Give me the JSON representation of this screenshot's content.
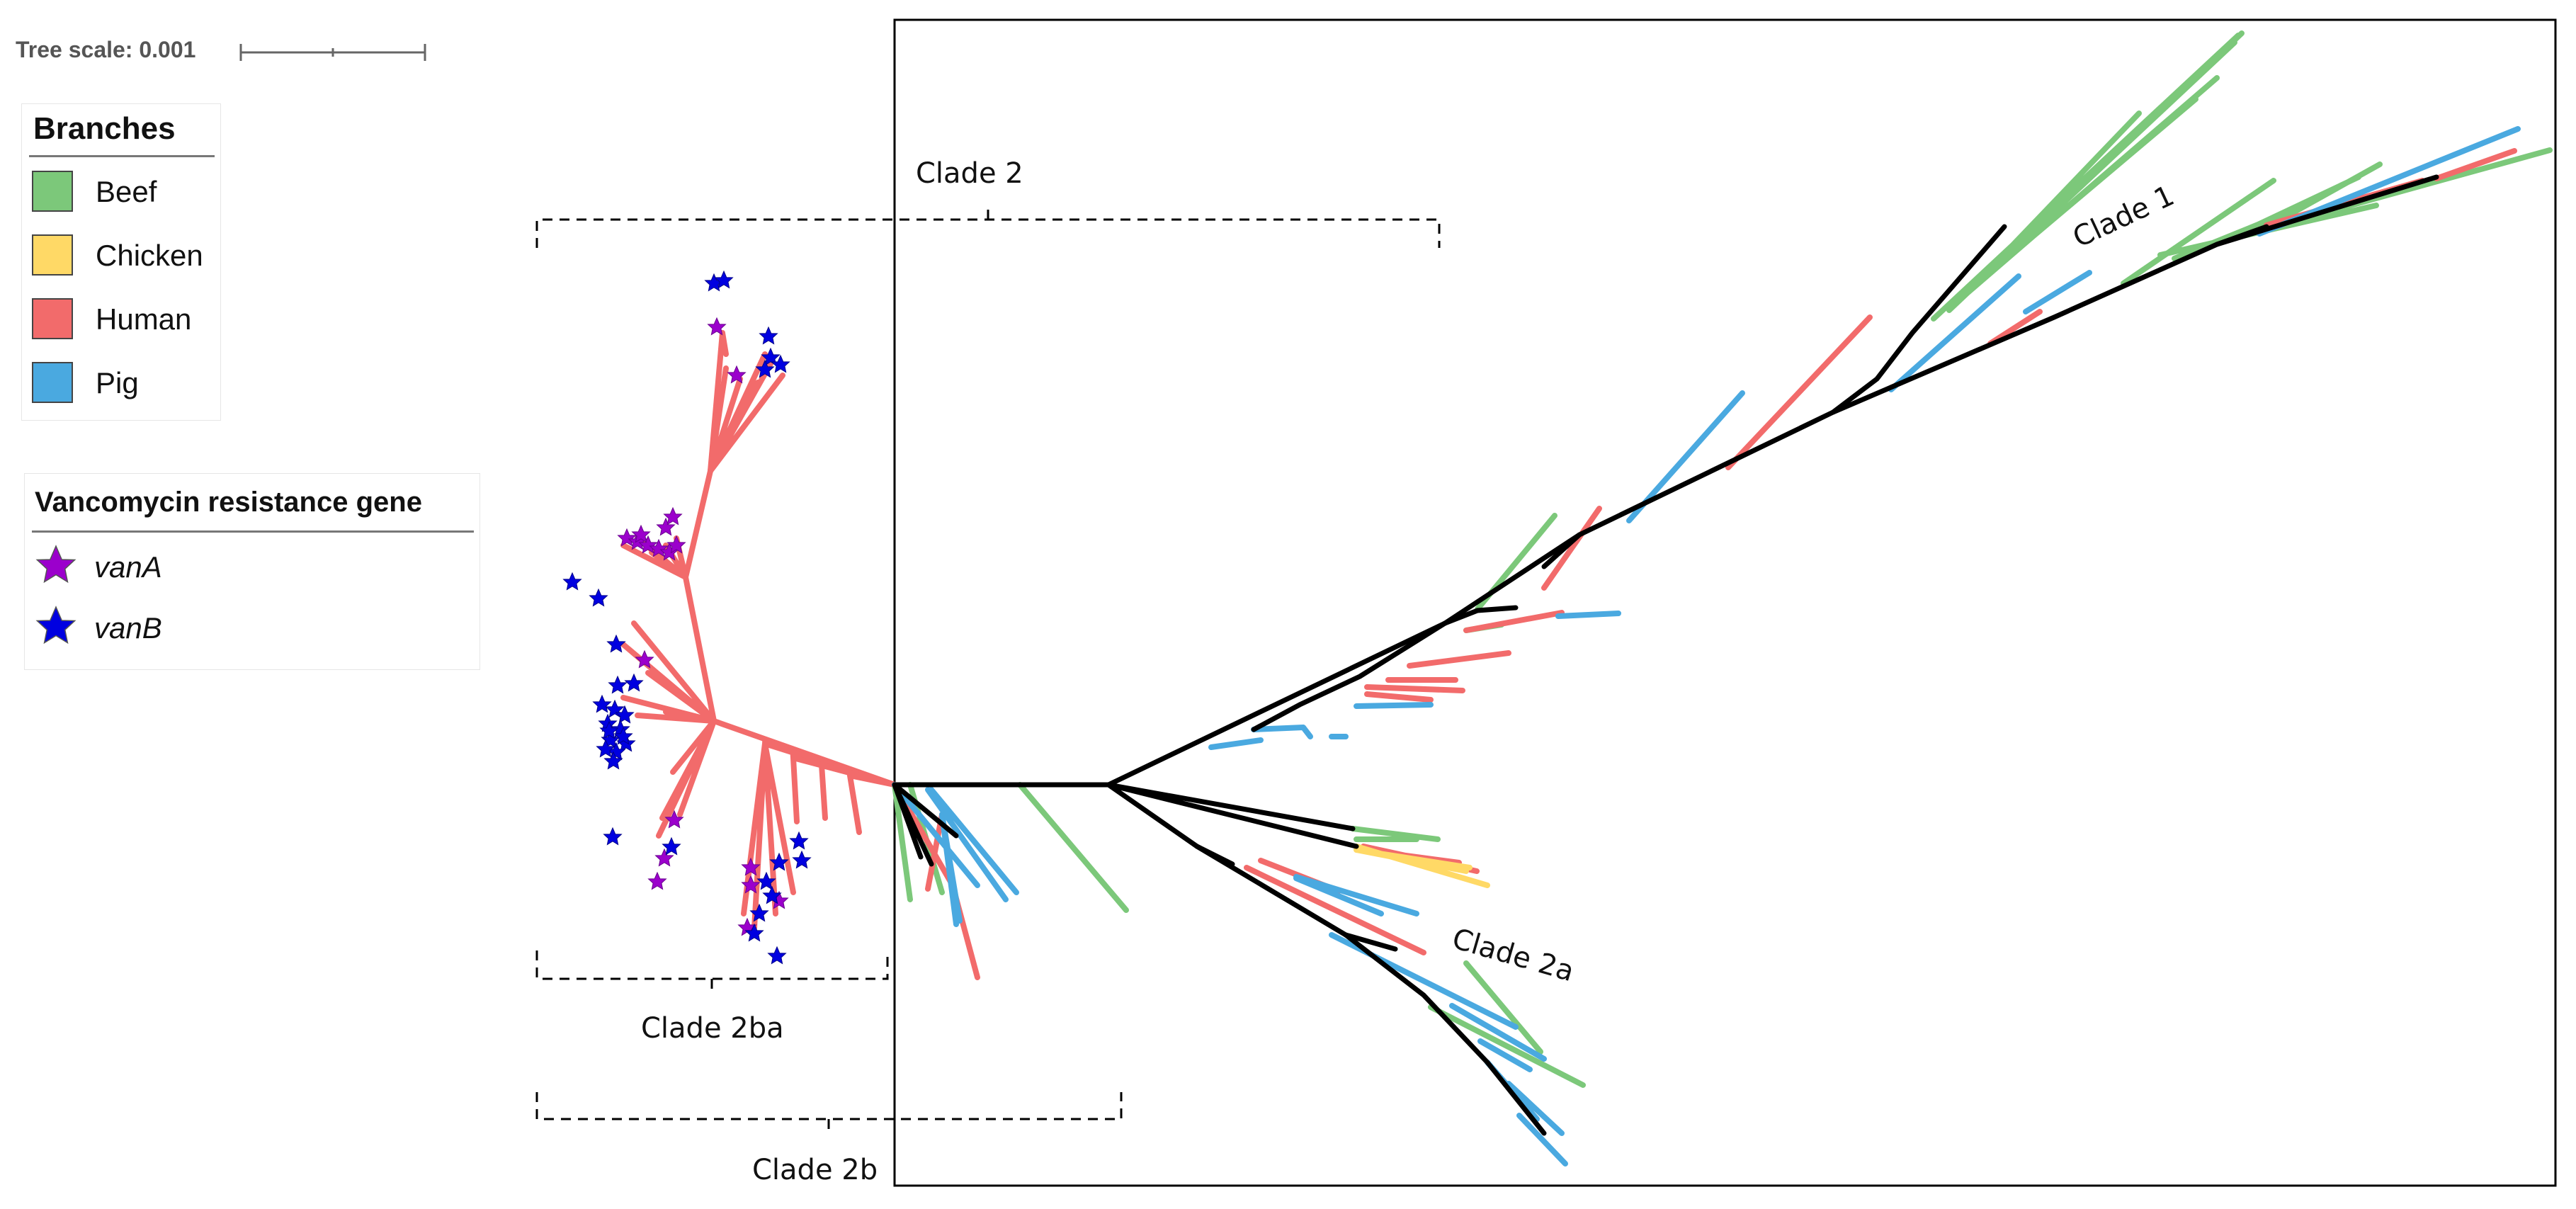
{
  "tree_scale": {
    "label": "Tree scale: 0.001"
  },
  "legend_branches": {
    "title": "Branches",
    "items": [
      {
        "label": "Beef",
        "color": "#7cc87a"
      },
      {
        "label": "Chicken",
        "color": "#ffd966"
      },
      {
        "label": "Human",
        "color": "#f26b6b"
      },
      {
        "label": "Pig",
        "color": "#4aa9e0"
      }
    ]
  },
  "legend_genes": {
    "title": "Vancomycin resistance gene",
    "items": [
      {
        "label": "vanA",
        "color": "#9b00cc"
      },
      {
        "label": "vanB",
        "color": "#0000e0"
      }
    ]
  },
  "clades": {
    "clade_1": "Clade 1",
    "clade_2": "Clade 2",
    "clade_2a": "Clade 2a",
    "clade_2b": "Clade 2b",
    "clade_2ba": "Clade 2ba"
  }
}
